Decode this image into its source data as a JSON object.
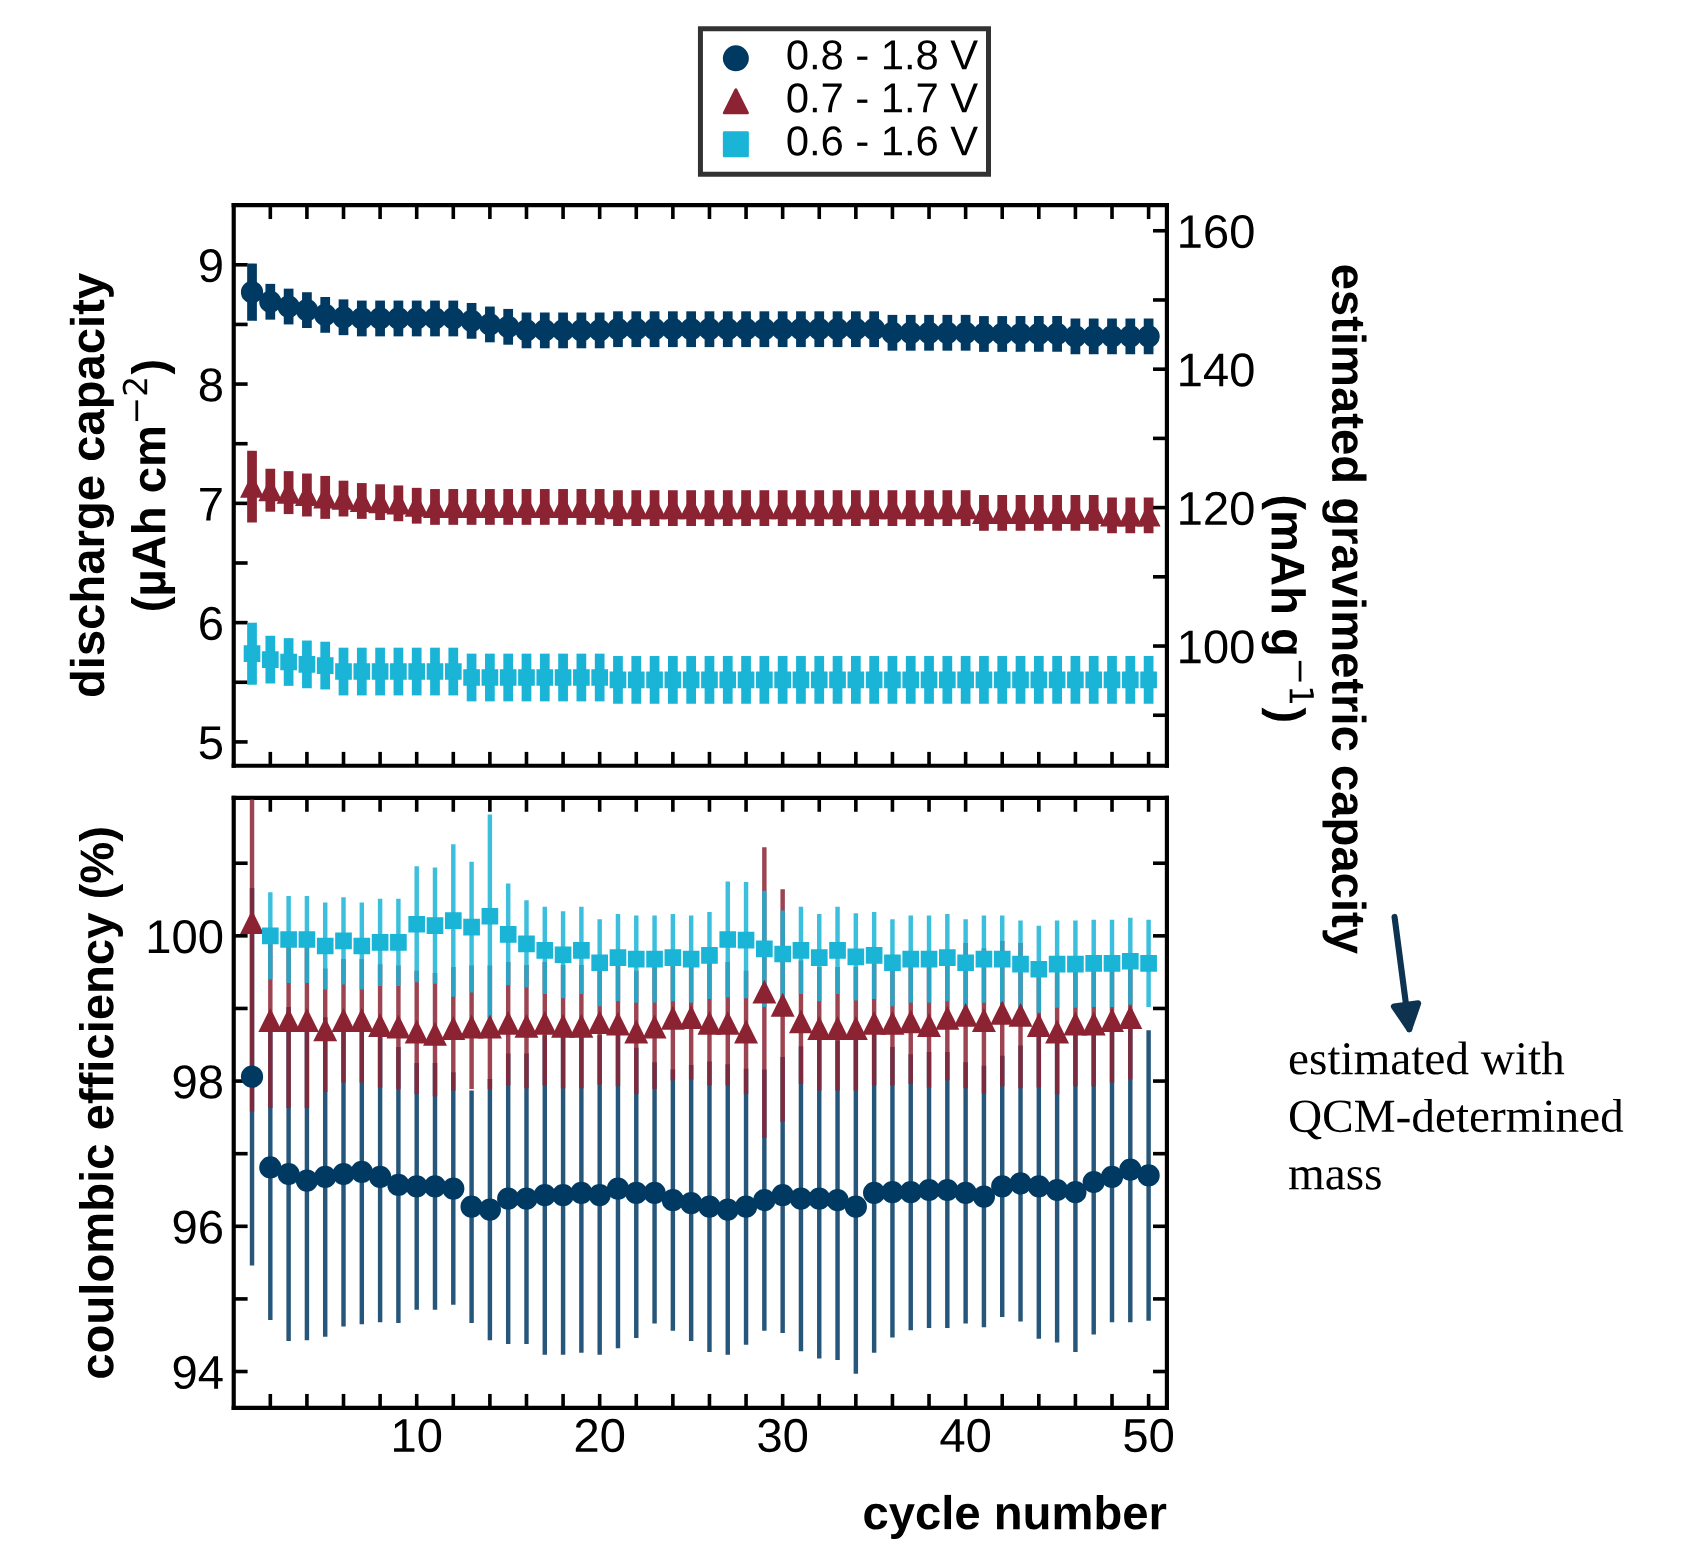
{
  "chart_data": [
    {
      "type": "scatter",
      "ylabel": "discharge capacity\n(µAh cm$^{−2}$)",
      "y2label": "estimated gravimetric capacity\n(mAh g$^{−1}$)",
      "x": [
        1,
        2,
        3,
        4,
        5,
        6,
        7,
        8,
        9,
        10,
        11,
        12,
        13,
        14,
        15,
        16,
        17,
        18,
        19,
        20,
        21,
        22,
        23,
        24,
        25,
        26,
        27,
        28,
        29,
        30,
        31,
        32,
        33,
        34,
        35,
        36,
        37,
        38,
        39,
        40,
        41,
        42,
        43,
        44,
        45,
        46,
        47,
        48,
        49,
        50
      ],
      "xlim": [
        0,
        51
      ],
      "xticks": [
        {
          "value": 2,
          "label": null
        },
        {
          "value": 4,
          "label": null
        },
        {
          "value": 6,
          "label": null
        },
        {
          "value": 8,
          "label": null
        },
        10,
        {
          "value": 12,
          "label": null
        },
        {
          "value": 14,
          "label": null
        },
        {
          "value": 16,
          "label": null
        },
        {
          "value": 18,
          "label": null
        },
        20,
        {
          "value": 22,
          "label": null
        },
        {
          "value": 24,
          "label": null
        },
        {
          "value": 26,
          "label": null
        },
        {
          "value": 28,
          "label": null
        },
        30,
        {
          "value": 32,
          "label": null
        },
        {
          "value": 34,
          "label": null
        },
        {
          "value": 36,
          "label": null
        },
        {
          "value": 38,
          "label": null
        },
        40,
        {
          "value": 42,
          "label": null
        },
        {
          "value": 44,
          "label": null
        },
        {
          "value": 46,
          "label": null
        },
        {
          "value": 48,
          "label": null
        },
        50
      ],
      "ylim": [
        4.8,
        9.5
      ],
      "yticks": [
        5,
        {
          "value": 5.5,
          "label": null
        },
        6,
        {
          "value": 6.5,
          "label": null
        },
        7,
        {
          "value": 7.5,
          "label": null
        },
        8,
        {
          "value": 8.5,
          "label": null
        },
        9
      ],
      "y2lim": [
        82.7,
        163.7
      ],
      "y2ticks": [
        {
          "value": 90,
          "label": null
        },
        100,
        {
          "value": 110,
          "label": null
        },
        120,
        {
          "value": 130,
          "label": null
        },
        140,
        {
          "value": 150,
          "label": null
        },
        160
      ],
      "tick_labels": "y",
      "grid": false,
      "legend": "top",
      "series": [
        {
          "name": "0.8 - 1.8 V",
          "color": "#003a63",
          "marker": "circle",
          "values": [
            8.77,
            8.69,
            8.65,
            8.62,
            8.58,
            8.56,
            8.55,
            8.55,
            8.55,
            8.55,
            8.55,
            8.55,
            8.53,
            8.5,
            8.48,
            8.45,
            8.45,
            8.45,
            8.45,
            8.45,
            8.46,
            8.46,
            8.46,
            8.46,
            8.46,
            8.46,
            8.46,
            8.46,
            8.46,
            8.46,
            8.46,
            8.46,
            8.46,
            8.46,
            8.46,
            8.43,
            8.43,
            8.43,
            8.43,
            8.43,
            8.42,
            8.42,
            8.42,
            8.42,
            8.42,
            8.4,
            8.4,
            8.4,
            8.4,
            8.4
          ],
          "errors": [
            0.24,
            0.15,
            0.15,
            0.15,
            0.15,
            0.15,
            0.15,
            0.15,
            0.15,
            0.15,
            0.15,
            0.15,
            0.15,
            0.15,
            0.15,
            0.15,
            0.15,
            0.15,
            0.15,
            0.15,
            0.15,
            0.15,
            0.15,
            0.15,
            0.15,
            0.15,
            0.15,
            0.15,
            0.15,
            0.15,
            0.15,
            0.15,
            0.15,
            0.15,
            0.15,
            0.15,
            0.15,
            0.15,
            0.15,
            0.15,
            0.15,
            0.15,
            0.15,
            0.15,
            0.15,
            0.15,
            0.15,
            0.15,
            0.15,
            0.15
          ]
        },
        {
          "name": "0.7 - 1.7 V",
          "color": "#8b2332",
          "marker": "triangle",
          "values": [
            7.14,
            7.11,
            7.09,
            7.07,
            7.05,
            7.04,
            7.02,
            7.01,
            7.0,
            6.98,
            6.97,
            6.97,
            6.97,
            6.97,
            6.97,
            6.97,
            6.97,
            6.97,
            6.97,
            6.97,
            6.96,
            6.96,
            6.96,
            6.96,
            6.96,
            6.96,
            6.96,
            6.96,
            6.96,
            6.96,
            6.96,
            6.96,
            6.96,
            6.96,
            6.96,
            6.96,
            6.96,
            6.96,
            6.96,
            6.96,
            6.92,
            6.92,
            6.92,
            6.92,
            6.92,
            6.92,
            6.92,
            6.9,
            6.9,
            6.9
          ],
          "errors": [
            0.3,
            0.18,
            0.18,
            0.18,
            0.18,
            0.15,
            0.15,
            0.15,
            0.15,
            0.15,
            0.15,
            0.15,
            0.15,
            0.15,
            0.15,
            0.15,
            0.15,
            0.15,
            0.15,
            0.15,
            0.15,
            0.15,
            0.15,
            0.15,
            0.15,
            0.15,
            0.15,
            0.15,
            0.15,
            0.15,
            0.15,
            0.15,
            0.15,
            0.15,
            0.15,
            0.15,
            0.15,
            0.15,
            0.15,
            0.15,
            0.15,
            0.15,
            0.15,
            0.15,
            0.15,
            0.15,
            0.15,
            0.15,
            0.15,
            0.15
          ]
        },
        {
          "name": "0.6 - 1.6 V",
          "color": "#19b4d6",
          "marker": "square",
          "values": [
            5.74,
            5.69,
            5.67,
            5.65,
            5.64,
            5.59,
            5.59,
            5.59,
            5.59,
            5.59,
            5.59,
            5.59,
            5.54,
            5.54,
            5.54,
            5.54,
            5.54,
            5.54,
            5.54,
            5.54,
            5.52,
            5.52,
            5.52,
            5.52,
            5.52,
            5.52,
            5.52,
            5.52,
            5.52,
            5.52,
            5.52,
            5.52,
            5.52,
            5.52,
            5.52,
            5.52,
            5.52,
            5.52,
            5.52,
            5.52,
            5.52,
            5.52,
            5.52,
            5.52,
            5.52,
            5.52,
            5.52,
            5.52,
            5.52,
            5.52
          ],
          "errors": [
            0.26,
            0.2,
            0.2,
            0.2,
            0.2,
            0.2,
            0.2,
            0.2,
            0.2,
            0.2,
            0.2,
            0.2,
            0.2,
            0.2,
            0.2,
            0.2,
            0.2,
            0.2,
            0.2,
            0.2,
            0.2,
            0.2,
            0.2,
            0.2,
            0.2,
            0.2,
            0.2,
            0.2,
            0.2,
            0.2,
            0.2,
            0.2,
            0.2,
            0.2,
            0.2,
            0.2,
            0.2,
            0.2,
            0.2,
            0.2,
            0.2,
            0.2,
            0.2,
            0.2,
            0.2,
            0.2,
            0.2,
            0.2,
            0.2,
            0.2
          ]
        }
      ]
    },
    {
      "type": "scatter",
      "xlabel": "cycle number",
      "ylabel": "coulombic efficiency (%)",
      "annotations": [
        "estimated with\nQCM-determined\nmass"
      ],
      "x": [
        1,
        2,
        3,
        4,
        5,
        6,
        7,
        8,
        9,
        10,
        11,
        12,
        13,
        14,
        15,
        16,
        17,
        18,
        19,
        20,
        21,
        22,
        23,
        24,
        25,
        26,
        27,
        28,
        29,
        30,
        31,
        32,
        33,
        34,
        35,
        36,
        37,
        38,
        39,
        40,
        41,
        42,
        43,
        44,
        45,
        46,
        47,
        48,
        49,
        50
      ],
      "xlim": [
        0,
        51
      ],
      "xticks": [
        {
          "value": 2,
          "label": null
        },
        {
          "value": 4,
          "label": null
        },
        {
          "value": 6,
          "label": null
        },
        {
          "value": 8,
          "label": null
        },
        10,
        {
          "value": 12,
          "label": null
        },
        {
          "value": 14,
          "label": null
        },
        {
          "value": 16,
          "label": null
        },
        {
          "value": 18,
          "label": null
        },
        20,
        {
          "value": 22,
          "label": null
        },
        {
          "value": 24,
          "label": null
        },
        {
          "value": 26,
          "label": null
        },
        {
          "value": 28,
          "label": null
        },
        30,
        {
          "value": 32,
          "label": null
        },
        {
          "value": 34,
          "label": null
        },
        {
          "value": 36,
          "label": null
        },
        {
          "value": 38,
          "label": null
        },
        40,
        {
          "value": 42,
          "label": null
        },
        {
          "value": 44,
          "label": null
        },
        {
          "value": 46,
          "label": null
        },
        {
          "value": 48,
          "label": null
        },
        50
      ],
      "ylim": [
        93.5,
        101.9
      ],
      "yticks": [
        94,
        {
          "value": 95,
          "label": null
        },
        96,
        {
          "value": 97,
          "label": null
        },
        98,
        {
          "value": 99,
          "label": null
        },
        100,
        {
          "value": 101,
          "label": null
        }
      ],
      "grid": false,
      "series": [
        {
          "color": "#003a63",
          "marker": "circle",
          "values": [
            98.06,
            96.81,
            96.72,
            96.63,
            96.68,
            96.72,
            96.75,
            96.68,
            96.57,
            96.55,
            96.55,
            96.52,
            96.27,
            96.23,
            96.38,
            96.38,
            96.43,
            96.43,
            96.46,
            96.43,
            96.52,
            96.46,
            96.46,
            96.36,
            96.32,
            96.27,
            96.23,
            96.27,
            96.36,
            96.43,
            96.38,
            96.38,
            96.36,
            96.27,
            96.46,
            96.47,
            96.47,
            96.5,
            96.5,
            96.46,
            96.41,
            96.55,
            96.59,
            96.55,
            96.5,
            96.47,
            96.61,
            96.68,
            96.78,
            96.7
          ],
          "errors": [
            2.6,
            2.1,
            2.3,
            2.2,
            2.2,
            2.1,
            2.1,
            2.0,
            1.9,
            1.7,
            1.7,
            1.6,
            1.6,
            1.8,
            2.0,
            2.0,
            2.2,
            2.2,
            2.2,
            2.2,
            2.2,
            2.0,
            1.8,
            1.8,
            1.9,
            2.0,
            2.0,
            1.9,
            1.8,
            1.9,
            2.1,
            2.2,
            2.2,
            2.3,
            2.2,
            2.0,
            1.9,
            1.9,
            1.9,
            1.8,
            1.8,
            1.8,
            1.9,
            2.1,
            2.1,
            2.2,
            2.1,
            2.0,
            2.1,
            2.0
          ]
        },
        {
          "color": "#8b2332",
          "marker": "triangle",
          "x": [
            1,
            2,
            3,
            4,
            5,
            6,
            7,
            8,
            9,
            10,
            11,
            12,
            13,
            14,
            15,
            16,
            17,
            18,
            19,
            20,
            21,
            22,
            23,
            24,
            25,
            26,
            27,
            28,
            29,
            30,
            31,
            32,
            33,
            34,
            35,
            36,
            37,
            38,
            39,
            40,
            41,
            42,
            43,
            44,
            45,
            46,
            47,
            48,
            49
          ],
          "values": [
            100.18,
            98.83,
            98.83,
            98.83,
            98.7,
            98.83,
            98.83,
            98.76,
            98.74,
            98.67,
            98.64,
            98.72,
            98.74,
            98.74,
            98.79,
            98.75,
            98.79,
            98.75,
            98.75,
            98.8,
            98.78,
            98.67,
            98.74,
            98.86,
            98.87,
            98.79,
            98.79,
            98.67,
            99.22,
            99.04,
            98.81,
            98.72,
            98.72,
            98.72,
            98.79,
            98.79,
            98.81,
            98.76,
            98.86,
            98.9,
            98.83,
            98.93,
            98.9,
            98.76,
            98.67,
            98.78,
            98.78,
            98.83,
            98.87
          ],
          "errors": [
            [
              97.58,
              101.88
            ],
            1.2,
            1.2,
            1.2,
            0.85,
            0.85,
            0.85,
            0.85,
            0.85,
            0.85,
            0.85,
            0.85,
            0.85,
            0.85,
            0.85,
            0.85,
            0.85,
            0.85,
            0.85,
            0.85,
            0.85,
            0.85,
            0.85,
            0.85,
            0.85,
            0.85,
            0.85,
            0.85,
            2.0,
            1.6,
            0.85,
            0.85,
            0.85,
            0.85,
            0.85,
            0.85,
            0.85,
            0.85,
            0.85,
            1.0,
            1.0,
            1.0,
            1.0,
            0.85,
            0.85,
            0.85,
            0.85,
            0.85,
            0.85
          ]
        },
        {
          "color": "#19b4d6",
          "marker": "square",
          "values": [
            null,
            100.0,
            99.95,
            99.95,
            99.86,
            99.93,
            99.86,
            99.91,
            99.91,
            100.16,
            100.14,
            100.21,
            100.12,
            100.27,
            100.02,
            99.89,
            99.8,
            99.74,
            99.8,
            99.63,
            99.7,
            99.68,
            99.68,
            99.7,
            99.68,
            99.73,
            99.95,
            99.94,
            99.82,
            99.75,
            99.8,
            99.7,
            99.8,
            99.71,
            99.73,
            99.63,
            99.68,
            99.68,
            99.7,
            99.63,
            99.68,
            99.68,
            99.61,
            99.54,
            99.61,
            99.61,
            99.62,
            99.62,
            99.65,
            99.62
          ],
          "errors": [
            null,
            0.6,
            0.6,
            0.6,
            0.6,
            0.6,
            0.6,
            0.6,
            0.6,
            0.8,
            0.8,
            1.05,
            0.9,
            1.4,
            0.7,
            0.6,
            0.6,
            0.6,
            0.6,
            0.6,
            0.6,
            0.6,
            0.6,
            0.6,
            0.6,
            0.6,
            0.8,
            0.8,
            0.8,
            0.6,
            0.6,
            0.6,
            0.6,
            0.6,
            0.6,
            0.6,
            0.6,
            0.6,
            0.6,
            0.6,
            0.6,
            0.6,
            0.6,
            0.6,
            0.6,
            0.6,
            0.6,
            0.6,
            0.6,
            0.6
          ]
        }
      ]
    }
  ]
}
